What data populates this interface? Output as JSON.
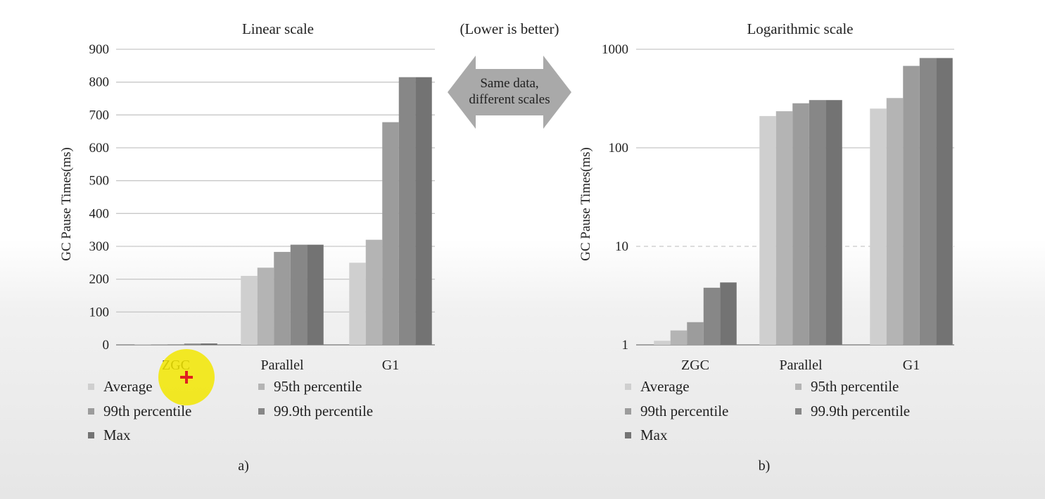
{
  "center_note": "(Lower is better)",
  "arrow_text": [
    "Same data,",
    "different scales"
  ],
  "colors": {
    "average": "#cfcfcf",
    "p95": "#b4b4b4",
    "p99": "#9c9c9c",
    "p999": "#878787",
    "max": "#737373",
    "arrow": "#a9a9a9",
    "cursor_highlight": "#f2e600",
    "cursor_cross": "#e02020"
  },
  "chart_data": [
    {
      "type": "bar",
      "title": "Linear scale",
      "panel_label": "a)",
      "ylabel": "GC Pause Times(ms)",
      "scale": "linear",
      "ylim": [
        0,
        900
      ],
      "yticks": [
        "0",
        "100",
        "200",
        "300",
        "400",
        "500",
        "600",
        "700",
        "800",
        "900"
      ],
      "categories": [
        "ZGC",
        "Parallel",
        "G1"
      ],
      "series": [
        {
          "name": "Average",
          "values": [
            1.1,
            210,
            250
          ]
        },
        {
          "name": "95th percentile",
          "values": [
            1.4,
            235,
            320
          ]
        },
        {
          "name": "99th percentile",
          "values": [
            1.7,
            283,
            678
          ]
        },
        {
          "name": "99.9th percentile",
          "values": [
            3.8,
            305,
            815
          ]
        },
        {
          "name": "Max",
          "values": [
            4.3,
            305,
            815
          ]
        }
      ],
      "grid": true,
      "legend": "bottom"
    },
    {
      "type": "bar",
      "title": "Logarithmic scale",
      "panel_label": "b)",
      "ylabel": "GC Pause Times(ms)",
      "scale": "log",
      "ylim": [
        1,
        1000
      ],
      "yticks": [
        "1",
        "10",
        "100",
        "1000"
      ],
      "categories": [
        "ZGC",
        "Parallel",
        "G1"
      ],
      "series": [
        {
          "name": "Average",
          "values": [
            1.1,
            210,
            250
          ]
        },
        {
          "name": "95th percentile",
          "values": [
            1.4,
            235,
            320
          ]
        },
        {
          "name": "99th percentile",
          "values": [
            1.7,
            283,
            678
          ]
        },
        {
          "name": "99.9th percentile",
          "values": [
            3.8,
            305,
            815
          ]
        },
        {
          "name": "Max",
          "values": [
            4.3,
            305,
            815
          ]
        }
      ],
      "grid": true,
      "legend": "bottom"
    }
  ]
}
